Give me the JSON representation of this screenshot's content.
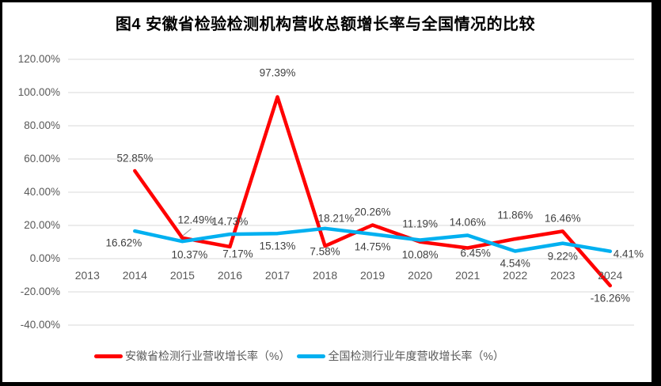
{
  "title": "图4 安徽省检验检测机构营收总额增长率与全国情况的比较",
  "chart_data": {
    "type": "line",
    "title": "图4 安徽省检验检测机构营收总额增长率与全国情况的比较",
    "categories": [
      "2013",
      "2014",
      "2015",
      "2016",
      "2017",
      "2018",
      "2019",
      "2020",
      "2021",
      "2022",
      "2023",
      "2024"
    ],
    "series": [
      {
        "name": "安徽省检测行业营收增长率（%）",
        "color": "#FF0000",
        "values": [
          null,
          52.85,
          12.49,
          7.17,
          97.39,
          7.58,
          20.26,
          10.08,
          6.45,
          11.86,
          16.46,
          -16.26
        ],
        "labels": [
          null,
          "52.85%",
          "12.49%",
          "7.17%",
          "97.39%",
          "7.58%",
          "20.26%",
          "10.08%",
          "6.45%",
          "11.86%",
          "16.46%",
          "-16.26%"
        ]
      },
      {
        "name": "全国检测行业年度营收增长率（%）",
        "color": "#00B0F0",
        "values": [
          null,
          16.62,
          10.37,
          14.73,
          15.13,
          18.21,
          14.75,
          11.19,
          14.06,
          4.54,
          9.22,
          4.41
        ],
        "labels": [
          null,
          "16.62%",
          "10.37%",
          "14.73%",
          "15.13%",
          "18.21%",
          "14.75%",
          "11.19%",
          "14.06%",
          "4.54%",
          "9.22%",
          "4.41%"
        ]
      }
    ],
    "yticks": [
      "120.00%",
      "100.00%",
      "80.00%",
      "60.00%",
      "40.00%",
      "20.00%",
      "0.00%",
      "-20.00%",
      "-40.00%"
    ],
    "ylim": [
      -40,
      120
    ],
    "ytick_step": 20,
    "grid": true,
    "legend_position": "bottom"
  },
  "colors": {
    "series_anhui": "#FF0000",
    "series_national": "#00B0F0",
    "gridline": "#D9D9D9",
    "axis_text": "#595959",
    "data_label_text": "#404040",
    "title_text": "#000000",
    "leader_line": "#A0A0A0",
    "border": "#000000",
    "background": "#FFFFFF"
  }
}
